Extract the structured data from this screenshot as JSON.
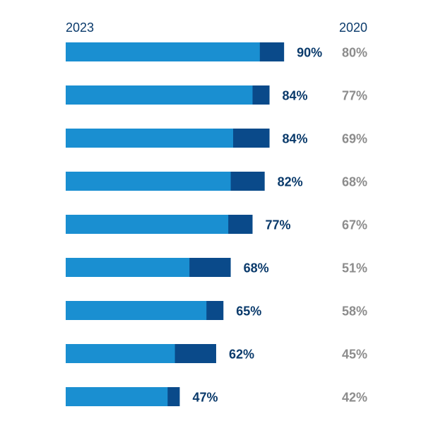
{
  "chart_data": {
    "type": "bar",
    "orientation": "horizontal",
    "stacked_overlay": true,
    "header_2023": "2023",
    "header_2020": "2020",
    "series": [
      {
        "name": "2023",
        "values": [
          90,
          84,
          84,
          82,
          77,
          68,
          65,
          62,
          47
        ],
        "labels": [
          "90%",
          "84%",
          "84%",
          "82%",
          "77%",
          "68%",
          "65%",
          "62%",
          "47%"
        ]
      },
      {
        "name": "2020",
        "values": [
          80,
          77,
          69,
          68,
          67,
          51,
          58,
          45,
          42
        ],
        "labels": [
          "80%",
          "77%",
          "69%",
          "68%",
          "67%",
          "51%",
          "58%",
          "45%",
          "42%"
        ]
      }
    ],
    "xlim": [
      0,
      100
    ],
    "grid": false,
    "colors": {
      "bar_2023": "#0a4a8a",
      "bar_2020": "#1a8fd1",
      "label_2023": "#0a3a6b",
      "label_2020": "#8c8c8c"
    }
  }
}
